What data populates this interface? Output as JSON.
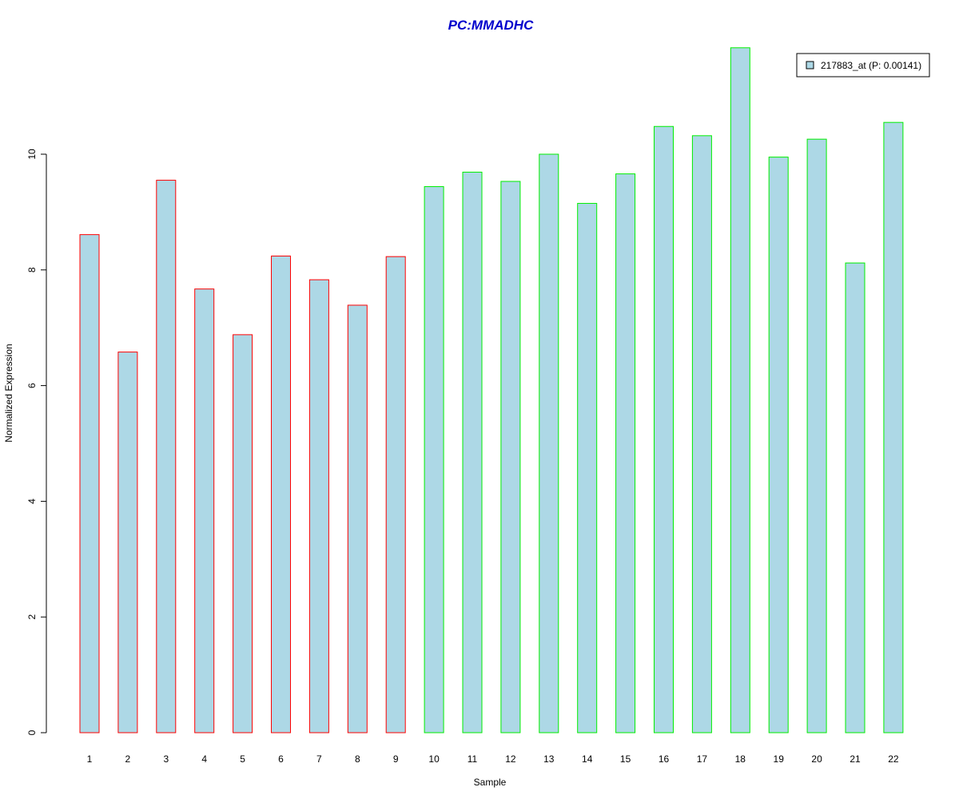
{
  "chart_data": {
    "type": "bar",
    "title": "PC:MMADHC",
    "xlabel": "Sample",
    "ylabel": "Normalized Expression",
    "categories": [
      "1",
      "2",
      "3",
      "4",
      "5",
      "6",
      "7",
      "8",
      "9",
      "10",
      "11",
      "12",
      "13",
      "14",
      "15",
      "16",
      "17",
      "18",
      "19",
      "20",
      "21",
      "22"
    ],
    "values": [
      8.61,
      6.58,
      9.55,
      7.67,
      6.88,
      8.24,
      7.83,
      7.39,
      8.23,
      9.44,
      9.69,
      9.53,
      10.0,
      9.15,
      9.66,
      10.48,
      10.32,
      11.84,
      9.95,
      10.26,
      8.12,
      10.55
    ],
    "groups": [
      "a",
      "a",
      "a",
      "a",
      "a",
      "a",
      "a",
      "a",
      "a",
      "b",
      "b",
      "b",
      "b",
      "b",
      "b",
      "b",
      "b",
      "b",
      "b",
      "b",
      "b",
      "b"
    ],
    "ylim": [
      0,
      12
    ],
    "yticks": [
      0,
      2,
      4,
      6,
      8,
      10
    ],
    "legend": {
      "label": "217883_at (P: 0.00141)",
      "position": "top-right"
    },
    "colors": {
      "bar_fill": "#add8e6",
      "group_a_border": "#ff0000",
      "group_b_border": "#00ee00",
      "title": "#0000cc"
    },
    "grid": false
  }
}
